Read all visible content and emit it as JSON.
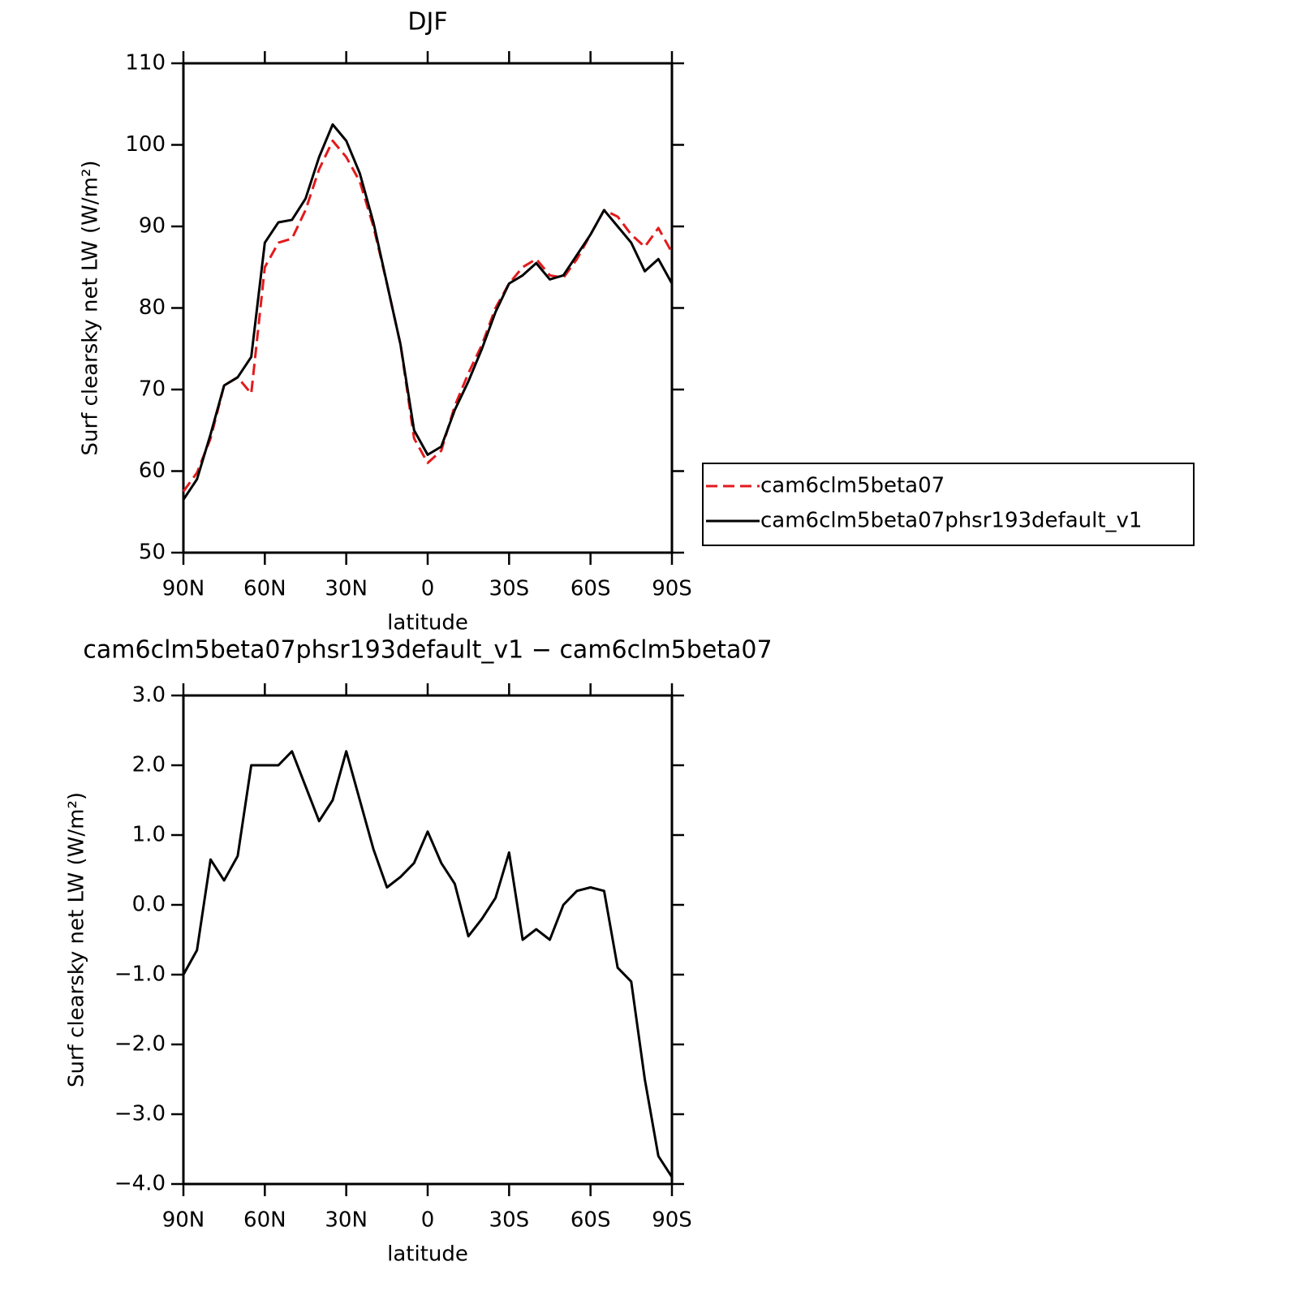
{
  "chart_data": [
    {
      "type": "line",
      "title": "DJF",
      "x_label": "latitude",
      "y_label": "Surf clearsky net LW (W/m²)",
      "x": [
        90,
        85,
        80,
        75,
        70,
        65,
        60,
        55,
        50,
        45,
        40,
        35,
        30,
        25,
        20,
        15,
        10,
        5,
        0,
        -5,
        -10,
        -15,
        -20,
        -25,
        -30,
        -35,
        -40,
        -45,
        -50,
        -55,
        -60,
        -65,
        -70,
        -75,
        -80,
        -85,
        -90
      ],
      "xlim": [
        90,
        -90
      ],
      "xticks": [
        {
          "value": 90,
          "label": "90N"
        },
        {
          "value": 60,
          "label": "60N"
        },
        {
          "value": 30,
          "label": "30N"
        },
        0,
        {
          "value": -30,
          "label": "30S"
        },
        {
          "value": -60,
          "label": "60S"
        },
        {
          "value": -90,
          "label": "90S"
        }
      ],
      "ylim": [
        50,
        110
      ],
      "yticks": [
        50,
        60,
        70,
        80,
        90,
        100,
        110
      ],
      "legend": "outside-right",
      "series": [
        {
          "name": "cam6clm5beta07",
          "color": "#e31a1c",
          "line_style": "dashed",
          "values": [
            57.5,
            59.8,
            64,
            70.5,
            71.5,
            69.5,
            85,
            88,
            88.5,
            92,
            97,
            100.5,
            98.5,
            95.5,
            90,
            83,
            75.5,
            64,
            61,
            62.5,
            68,
            72,
            75.5,
            80,
            83,
            85,
            86,
            84,
            83.7,
            86,
            89,
            92,
            91.2,
            89,
            87.5,
            89.8,
            86.8
          ]
        },
        {
          "name": "cam6clm5beta07phsr193default_v1",
          "color": "#000000",
          "line_style": "solid",
          "values": [
            56.5,
            59,
            64.5,
            70.5,
            71.5,
            74,
            88,
            90.5,
            90.8,
            93.4,
            98.5,
            102.5,
            100.5,
            96.5,
            90.5,
            83,
            75.5,
            65,
            62,
            63,
            67.5,
            71,
            75,
            79.5,
            83,
            84,
            85.5,
            83.5,
            84,
            86.5,
            89,
            92,
            90,
            88,
            84.5,
            86,
            83
          ]
        }
      ]
    },
    {
      "type": "line",
      "title": "cam6clm5beta07phsr193default_v1 − cam6clm5beta07",
      "x_label": "latitude",
      "y_label": "Surf clearsky net LW (W/m²)",
      "x": [
        90,
        85,
        80,
        75,
        70,
        65,
        60,
        55,
        50,
        45,
        40,
        35,
        30,
        25,
        20,
        15,
        10,
        5,
        0,
        -5,
        -10,
        -15,
        -20,
        -25,
        -30,
        -35,
        -40,
        -45,
        -50,
        -55,
        -60,
        -65,
        -70,
        -75,
        -80,
        -85,
        -90
      ],
      "xlim": [
        90,
        -90
      ],
      "xticks": [
        {
          "value": 90,
          "label": "90N"
        },
        {
          "value": 60,
          "label": "60N"
        },
        {
          "value": 30,
          "label": "30N"
        },
        0,
        {
          "value": -30,
          "label": "30S"
        },
        {
          "value": -60,
          "label": "60S"
        },
        {
          "value": -90,
          "label": "90S"
        }
      ],
      "ylim": [
        -4,
        3
      ],
      "yticks": [
        {
          "value": -4,
          "label": "−4.0"
        },
        {
          "value": -3,
          "label": "−3.0"
        },
        {
          "value": -2,
          "label": "−2.0"
        },
        {
          "value": -1,
          "label": "−1.0"
        },
        {
          "value": 0,
          "label": "0.0"
        },
        {
          "value": 1,
          "label": "1.0"
        },
        {
          "value": 2,
          "label": "2.0"
        },
        {
          "value": 3,
          "label": "3.0"
        }
      ],
      "series": [
        {
          "color": "#000000",
          "line_style": "solid",
          "values": [
            -1.0,
            -0.65,
            0.65,
            0.35,
            0.7,
            2.0,
            2.0,
            2.0,
            2.2,
            1.7,
            1.2,
            1.5,
            2.2,
            1.5,
            0.8,
            0.25,
            0.4,
            0.6,
            1.05,
            0.6,
            0.3,
            -0.45,
            -0.2,
            0.1,
            0.75,
            -0.5,
            -0.35,
            -0.5,
            0.0,
            0.2,
            0.25,
            0.2,
            -0.9,
            -1.1,
            -2.5,
            -3.6,
            -3.9
          ]
        }
      ]
    }
  ]
}
